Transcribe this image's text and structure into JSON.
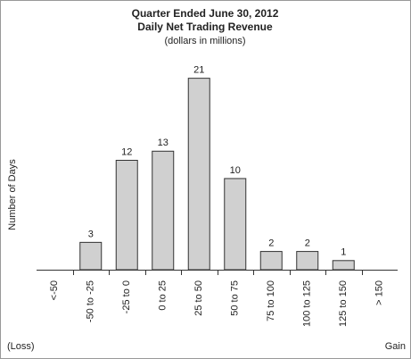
{
  "chart_data": {
    "type": "bar",
    "title": "Quarter Ended June 30, 2012",
    "subtitle": "Daily Net Trading Revenue",
    "unit_note": "(dollars in millions)",
    "y_label": "Number of Days",
    "left_note": "(Loss)",
    "right_note": "Gain",
    "categories": [
      "<-50",
      "-50 to -25",
      "-25 to 0",
      "0 to 25",
      "25 to 50",
      "50 to 75",
      "75 to 100",
      "100 to 125",
      "125 to 150",
      "> 150"
    ],
    "values": [
      0,
      3,
      12,
      13,
      21,
      10,
      2,
      2,
      1,
      0
    ],
    "value_labels": [
      null,
      "3",
      "12",
      "13",
      "21",
      "10",
      "2",
      "2",
      "1",
      null
    ],
    "color": "#d0d0d0",
    "ylim": [
      0,
      24
    ]
  }
}
